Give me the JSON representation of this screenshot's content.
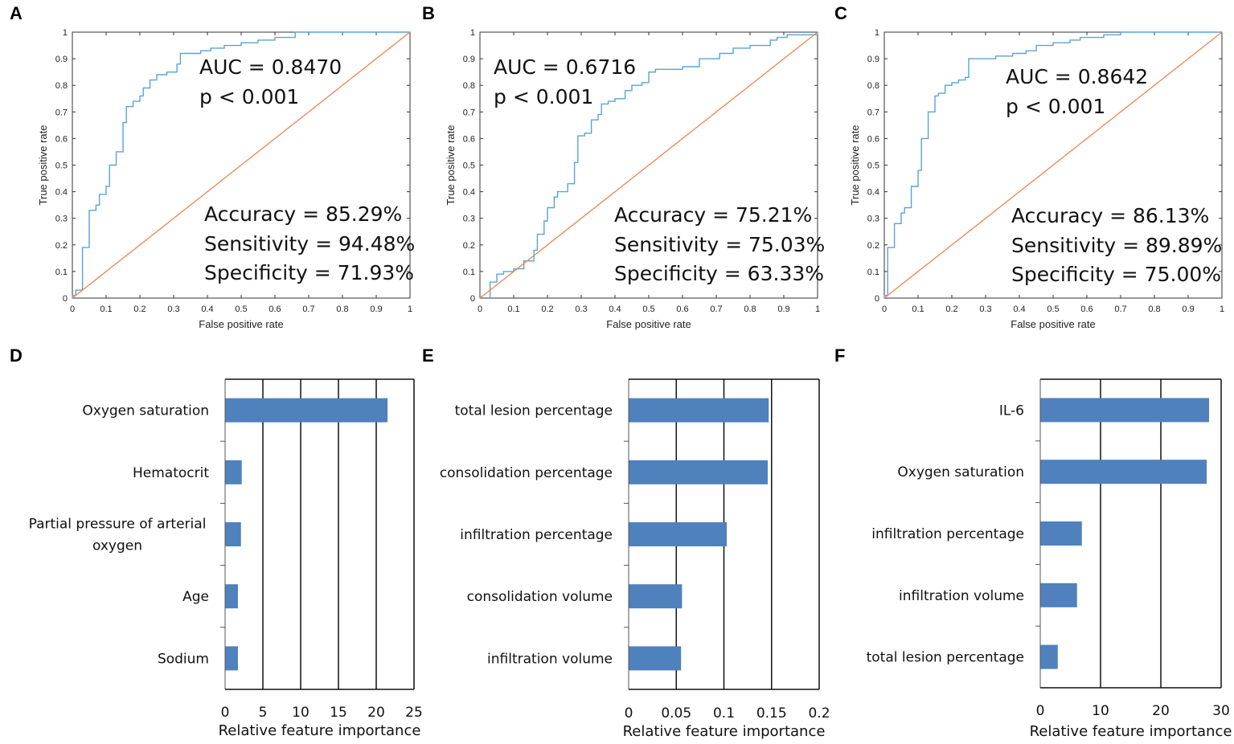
{
  "chart_data": [
    {
      "panel": "A",
      "type": "line",
      "xlabel": "False positive rate",
      "ylabel": "True positive rate",
      "xlim": [
        0,
        1
      ],
      "ylim": [
        0,
        1
      ],
      "xticks": [
        "0",
        "0.1",
        "0.2",
        "0.3",
        "0.4",
        "0.5",
        "0.6",
        "0.7",
        "0.8",
        "0.9",
        "1"
      ],
      "yticks": [
        "0",
        "0.1",
        "0.2",
        "0.3",
        "0.4",
        "0.5",
        "0.6",
        "0.7",
        "0.8",
        "0.9",
        "1"
      ],
      "annotations": {
        "auc": "AUC = 0.8470",
        "p": "p < 0.001",
        "accuracy": "Accuracy = 85.29%",
        "sensitivity": "Sensitivity = 94.48%",
        "specificity": "Specificity = 71.93%"
      },
      "series": [
        {
          "name": "ROC",
          "color": "#5aa3d8",
          "points": [
            [
              0,
              0
            ],
            [
              0,
              0.01
            ],
            [
              0.01,
              0.01
            ],
            [
              0.01,
              0.03
            ],
            [
              0.03,
              0.03
            ],
            [
              0.03,
              0.19
            ],
            [
              0.05,
              0.19
            ],
            [
              0.05,
              0.33
            ],
            [
              0.07,
              0.33
            ],
            [
              0.07,
              0.35
            ],
            [
              0.08,
              0.35
            ],
            [
              0.08,
              0.39
            ],
            [
              0.1,
              0.39
            ],
            [
              0.1,
              0.42
            ],
            [
              0.11,
              0.42
            ],
            [
              0.11,
              0.5
            ],
            [
              0.13,
              0.5
            ],
            [
              0.13,
              0.55
            ],
            [
              0.15,
              0.55
            ],
            [
              0.15,
              0.66
            ],
            [
              0.16,
              0.66
            ],
            [
              0.16,
              0.72
            ],
            [
              0.18,
              0.72
            ],
            [
              0.18,
              0.74
            ],
            [
              0.2,
              0.74
            ],
            [
              0.2,
              0.76
            ],
            [
              0.21,
              0.76
            ],
            [
              0.21,
              0.79
            ],
            [
              0.23,
              0.79
            ],
            [
              0.23,
              0.82
            ],
            [
              0.25,
              0.82
            ],
            [
              0.25,
              0.84
            ],
            [
              0.28,
              0.84
            ],
            [
              0.28,
              0.85
            ],
            [
              0.31,
              0.85
            ],
            [
              0.31,
              0.88
            ],
            [
              0.32,
              0.88
            ],
            [
              0.32,
              0.92
            ],
            [
              0.38,
              0.92
            ],
            [
              0.38,
              0.93
            ],
            [
              0.41,
              0.93
            ],
            [
              0.41,
              0.94
            ],
            [
              0.45,
              0.94
            ],
            [
              0.45,
              0.95
            ],
            [
              0.5,
              0.95
            ],
            [
              0.5,
              0.96
            ],
            [
              0.55,
              0.96
            ],
            [
              0.55,
              0.97
            ],
            [
              0.6,
              0.97
            ],
            [
              0.6,
              0.98
            ],
            [
              0.66,
              0.98
            ],
            [
              0.66,
              1.0
            ],
            [
              1,
              1
            ]
          ]
        },
        {
          "name": "Reference",
          "color": "#ee8a5a",
          "points": [
            [
              0,
              0
            ],
            [
              1,
              1
            ]
          ]
        }
      ]
    },
    {
      "panel": "B",
      "type": "line",
      "xlabel": "False positive rate",
      "ylabel": "True positive rate",
      "xlim": [
        0,
        1
      ],
      "ylim": [
        0,
        1
      ],
      "xticks": [
        "0",
        "0.1",
        "0.2",
        "0.3",
        "0.4",
        "0.5",
        "0.6",
        "0.7",
        "0.8",
        "0.9",
        "1"
      ],
      "yticks": [
        "0",
        "0.1",
        "0.2",
        "0.3",
        "0.4",
        "0.5",
        "0.6",
        "0.7",
        "0.8",
        "0.9",
        "1"
      ],
      "annotations": {
        "auc": "AUC = 0.6716",
        "p": "p < 0.001",
        "accuracy": "Accuracy = 75.21%",
        "sensitivity": "Sensitivity = 75.03%",
        "specificity": "Specificity = 63.33%"
      },
      "series": [
        {
          "name": "ROC",
          "color": "#5aa3d8",
          "points": [
            [
              0.03,
              0
            ],
            [
              0.03,
              0.06
            ],
            [
              0.05,
              0.06
            ],
            [
              0.05,
              0.09
            ],
            [
              0.07,
              0.09
            ],
            [
              0.07,
              0.1
            ],
            [
              0.1,
              0.1
            ],
            [
              0.1,
              0.11
            ],
            [
              0.13,
              0.11
            ],
            [
              0.13,
              0.14
            ],
            [
              0.16,
              0.14
            ],
            [
              0.16,
              0.18
            ],
            [
              0.17,
              0.18
            ],
            [
              0.17,
              0.24
            ],
            [
              0.19,
              0.24
            ],
            [
              0.19,
              0.29
            ],
            [
              0.2,
              0.29
            ],
            [
              0.2,
              0.34
            ],
            [
              0.22,
              0.34
            ],
            [
              0.22,
              0.38
            ],
            [
              0.23,
              0.38
            ],
            [
              0.23,
              0.4
            ],
            [
              0.26,
              0.4
            ],
            [
              0.26,
              0.43
            ],
            [
              0.28,
              0.43
            ],
            [
              0.28,
              0.51
            ],
            [
              0.29,
              0.51
            ],
            [
              0.29,
              0.61
            ],
            [
              0.31,
              0.61
            ],
            [
              0.31,
              0.62
            ],
            [
              0.33,
              0.62
            ],
            [
              0.33,
              0.67
            ],
            [
              0.35,
              0.67
            ],
            [
              0.35,
              0.69
            ],
            [
              0.36,
              0.69
            ],
            [
              0.36,
              0.73
            ],
            [
              0.38,
              0.73
            ],
            [
              0.38,
              0.74
            ],
            [
              0.4,
              0.74
            ],
            [
              0.4,
              0.75
            ],
            [
              0.43,
              0.75
            ],
            [
              0.43,
              0.78
            ],
            [
              0.45,
              0.78
            ],
            [
              0.45,
              0.8
            ],
            [
              0.48,
              0.8
            ],
            [
              0.48,
              0.81
            ],
            [
              0.5,
              0.81
            ],
            [
              0.5,
              0.85
            ],
            [
              0.52,
              0.85
            ],
            [
              0.52,
              0.86
            ],
            [
              0.6,
              0.86
            ],
            [
              0.6,
              0.87
            ],
            [
              0.65,
              0.87
            ],
            [
              0.65,
              0.9
            ],
            [
              0.71,
              0.9
            ],
            [
              0.71,
              0.92
            ],
            [
              0.75,
              0.92
            ],
            [
              0.75,
              0.94
            ],
            [
              0.8,
              0.94
            ],
            [
              0.8,
              0.95
            ],
            [
              0.86,
              0.95
            ],
            [
              0.86,
              0.97
            ],
            [
              0.88,
              0.97
            ],
            [
              0.88,
              0.98
            ],
            [
              0.91,
              0.98
            ],
            [
              0.91,
              0.99
            ],
            [
              1,
              0.99
            ],
            [
              1,
              1
            ]
          ]
        },
        {
          "name": "Reference",
          "color": "#ee8a5a",
          "points": [
            [
              0,
              0
            ],
            [
              1,
              1
            ]
          ]
        }
      ]
    },
    {
      "panel": "C",
      "type": "line",
      "xlabel": "False positive rate",
      "ylabel": "True positive rate",
      "xlim": [
        0,
        1
      ],
      "ylim": [
        0,
        1
      ],
      "xticks": [
        "0",
        "0.1",
        "0.2",
        "0.3",
        "0.4",
        "0.5",
        "0.6",
        "0.7",
        "0.8",
        "0.9",
        "1"
      ],
      "yticks": [
        "0",
        "0.1",
        "0.2",
        "0.3",
        "0.4",
        "0.5",
        "0.6",
        "0.7",
        "0.8",
        "0.9",
        "1"
      ],
      "annotations": {
        "auc": "AUC = 0.8642",
        "p": "p < 0.001",
        "accuracy": "Accuracy = 86.13%",
        "sensitivity": "Sensitivity = 89.89%",
        "specificity": "Specificity = 75.00%"
      },
      "series": [
        {
          "name": "ROC",
          "color": "#5aa3d8",
          "points": [
            [
              0,
              0
            ],
            [
              0,
              0.01
            ],
            [
              0.01,
              0.01
            ],
            [
              0.01,
              0.19
            ],
            [
              0.03,
              0.19
            ],
            [
              0.03,
              0.28
            ],
            [
              0.05,
              0.28
            ],
            [
              0.05,
              0.32
            ],
            [
              0.06,
              0.32
            ],
            [
              0.06,
              0.34
            ],
            [
              0.08,
              0.34
            ],
            [
              0.08,
              0.42
            ],
            [
              0.1,
              0.42
            ],
            [
              0.1,
              0.48
            ],
            [
              0.11,
              0.48
            ],
            [
              0.11,
              0.6
            ],
            [
              0.13,
              0.6
            ],
            [
              0.13,
              0.7
            ],
            [
              0.15,
              0.7
            ],
            [
              0.15,
              0.76
            ],
            [
              0.16,
              0.76
            ],
            [
              0.16,
              0.77
            ],
            [
              0.18,
              0.77
            ],
            [
              0.18,
              0.8
            ],
            [
              0.2,
              0.8
            ],
            [
              0.2,
              0.81
            ],
            [
              0.22,
              0.81
            ],
            [
              0.22,
              0.82
            ],
            [
              0.24,
              0.82
            ],
            [
              0.24,
              0.83
            ],
            [
              0.25,
              0.83
            ],
            [
              0.25,
              0.9
            ],
            [
              0.33,
              0.9
            ],
            [
              0.33,
              0.91
            ],
            [
              0.38,
              0.91
            ],
            [
              0.38,
              0.92
            ],
            [
              0.42,
              0.92
            ],
            [
              0.42,
              0.93
            ],
            [
              0.45,
              0.93
            ],
            [
              0.45,
              0.95
            ],
            [
              0.5,
              0.95
            ],
            [
              0.5,
              0.96
            ],
            [
              0.55,
              0.96
            ],
            [
              0.55,
              0.97
            ],
            [
              0.58,
              0.97
            ],
            [
              0.58,
              0.98
            ],
            [
              0.65,
              0.98
            ],
            [
              0.65,
              0.99
            ],
            [
              0.7,
              0.99
            ],
            [
              0.7,
              1.0
            ],
            [
              1,
              1
            ]
          ]
        },
        {
          "name": "Reference",
          "color": "#ee8a5a",
          "points": [
            [
              0,
              0
            ],
            [
              1,
              1
            ]
          ]
        }
      ]
    },
    {
      "panel": "D",
      "type": "bar",
      "orientation": "horizontal",
      "xlabel": "Relative feature importance",
      "xlim": [
        0,
        25
      ],
      "xticks": [
        "0",
        "5",
        "10",
        "15",
        "20",
        "25"
      ],
      "categories": [
        "Oxygen saturation",
        "Hematocrit",
        "Partial pressure of arterial oxygen",
        "Age",
        "Sodium"
      ],
      "category_lines": [
        [
          "Oxygen saturation"
        ],
        [
          "Hematocrit"
        ],
        [
          "Partial pressure of arterial",
          "oxygen"
        ],
        [
          "Age"
        ],
        [
          "Sodium"
        ]
      ],
      "values": [
        21.5,
        2.2,
        2.1,
        1.7,
        1.7
      ],
      "color": "#4f81bd"
    },
    {
      "panel": "E",
      "type": "bar",
      "orientation": "horizontal",
      "xlabel": "Relative feature importance",
      "xlim": [
        0,
        0.2
      ],
      "xticks": [
        "0",
        "0.05",
        "0.1",
        "0.15",
        "0.2"
      ],
      "categories": [
        "total lesion percentage",
        "consolidation percentage",
        "infiltration percentage",
        "consolidation volume",
        "infiltration volume"
      ],
      "category_lines": [
        [
          "total lesion percentage"
        ],
        [
          "consolidation percentage"
        ],
        [
          "infiltration percentage"
        ],
        [
          "consolidation volume"
        ],
        [
          "infiltration volume"
        ]
      ],
      "values": [
        0.147,
        0.146,
        0.103,
        0.056,
        0.055
      ],
      "color": "#4f81bd"
    },
    {
      "panel": "F",
      "type": "bar",
      "orientation": "horizontal",
      "xlabel": "Relative feature importance",
      "xlim": [
        0,
        30
      ],
      "xticks": [
        "0",
        "10",
        "20",
        "30"
      ],
      "categories": [
        "IL-6",
        "Oxygen saturation",
        "infiltration percentage",
        "infiltration volume",
        "total lesion percentage"
      ],
      "category_lines": [
        [
          "IL-6"
        ],
        [
          "Oxygen saturation"
        ],
        [
          "infiltration percentage"
        ],
        [
          "infiltration volume"
        ],
        [
          "total lesion percentage"
        ]
      ],
      "values": [
        28.0,
        27.6,
        6.9,
        6.1,
        2.9
      ],
      "color": "#4f81bd"
    }
  ]
}
